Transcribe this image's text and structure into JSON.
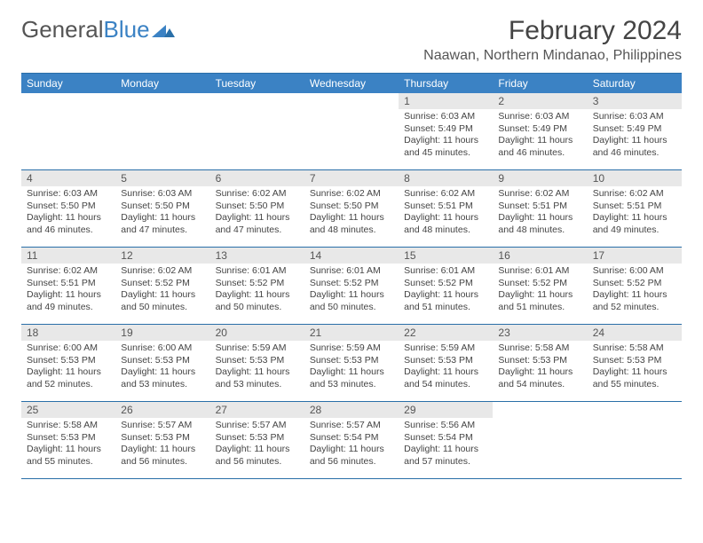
{
  "logo": {
    "text1": "General",
    "text2": "Blue"
  },
  "title": "February 2024",
  "location": "Naawan, Northern Mindanao, Philippines",
  "colors": {
    "header_bg": "#3b82c4",
    "border": "#2a6fa8",
    "daynum_bg": "#e8e8e8",
    "text": "#444444"
  },
  "daysOfWeek": [
    "Sunday",
    "Monday",
    "Tuesday",
    "Wednesday",
    "Thursday",
    "Friday",
    "Saturday"
  ],
  "weeks": [
    [
      {
        "empty": true
      },
      {
        "empty": true
      },
      {
        "empty": true
      },
      {
        "empty": true
      },
      {
        "num": "1",
        "sunrise": "Sunrise: 6:03 AM",
        "sunset": "Sunset: 5:49 PM",
        "daylight": "Daylight: 11 hours and 45 minutes."
      },
      {
        "num": "2",
        "sunrise": "Sunrise: 6:03 AM",
        "sunset": "Sunset: 5:49 PM",
        "daylight": "Daylight: 11 hours and 46 minutes."
      },
      {
        "num": "3",
        "sunrise": "Sunrise: 6:03 AM",
        "sunset": "Sunset: 5:49 PM",
        "daylight": "Daylight: 11 hours and 46 minutes."
      }
    ],
    [
      {
        "num": "4",
        "sunrise": "Sunrise: 6:03 AM",
        "sunset": "Sunset: 5:50 PM",
        "daylight": "Daylight: 11 hours and 46 minutes."
      },
      {
        "num": "5",
        "sunrise": "Sunrise: 6:03 AM",
        "sunset": "Sunset: 5:50 PM",
        "daylight": "Daylight: 11 hours and 47 minutes."
      },
      {
        "num": "6",
        "sunrise": "Sunrise: 6:02 AM",
        "sunset": "Sunset: 5:50 PM",
        "daylight": "Daylight: 11 hours and 47 minutes."
      },
      {
        "num": "7",
        "sunrise": "Sunrise: 6:02 AM",
        "sunset": "Sunset: 5:50 PM",
        "daylight": "Daylight: 11 hours and 48 minutes."
      },
      {
        "num": "8",
        "sunrise": "Sunrise: 6:02 AM",
        "sunset": "Sunset: 5:51 PM",
        "daylight": "Daylight: 11 hours and 48 minutes."
      },
      {
        "num": "9",
        "sunrise": "Sunrise: 6:02 AM",
        "sunset": "Sunset: 5:51 PM",
        "daylight": "Daylight: 11 hours and 48 minutes."
      },
      {
        "num": "10",
        "sunrise": "Sunrise: 6:02 AM",
        "sunset": "Sunset: 5:51 PM",
        "daylight": "Daylight: 11 hours and 49 minutes."
      }
    ],
    [
      {
        "num": "11",
        "sunrise": "Sunrise: 6:02 AM",
        "sunset": "Sunset: 5:51 PM",
        "daylight": "Daylight: 11 hours and 49 minutes."
      },
      {
        "num": "12",
        "sunrise": "Sunrise: 6:02 AM",
        "sunset": "Sunset: 5:52 PM",
        "daylight": "Daylight: 11 hours and 50 minutes."
      },
      {
        "num": "13",
        "sunrise": "Sunrise: 6:01 AM",
        "sunset": "Sunset: 5:52 PM",
        "daylight": "Daylight: 11 hours and 50 minutes."
      },
      {
        "num": "14",
        "sunrise": "Sunrise: 6:01 AM",
        "sunset": "Sunset: 5:52 PM",
        "daylight": "Daylight: 11 hours and 50 minutes."
      },
      {
        "num": "15",
        "sunrise": "Sunrise: 6:01 AM",
        "sunset": "Sunset: 5:52 PM",
        "daylight": "Daylight: 11 hours and 51 minutes."
      },
      {
        "num": "16",
        "sunrise": "Sunrise: 6:01 AM",
        "sunset": "Sunset: 5:52 PM",
        "daylight": "Daylight: 11 hours and 51 minutes."
      },
      {
        "num": "17",
        "sunrise": "Sunrise: 6:00 AM",
        "sunset": "Sunset: 5:52 PM",
        "daylight": "Daylight: 11 hours and 52 minutes."
      }
    ],
    [
      {
        "num": "18",
        "sunrise": "Sunrise: 6:00 AM",
        "sunset": "Sunset: 5:53 PM",
        "daylight": "Daylight: 11 hours and 52 minutes."
      },
      {
        "num": "19",
        "sunrise": "Sunrise: 6:00 AM",
        "sunset": "Sunset: 5:53 PM",
        "daylight": "Daylight: 11 hours and 53 minutes."
      },
      {
        "num": "20",
        "sunrise": "Sunrise: 5:59 AM",
        "sunset": "Sunset: 5:53 PM",
        "daylight": "Daylight: 11 hours and 53 minutes."
      },
      {
        "num": "21",
        "sunrise": "Sunrise: 5:59 AM",
        "sunset": "Sunset: 5:53 PM",
        "daylight": "Daylight: 11 hours and 53 minutes."
      },
      {
        "num": "22",
        "sunrise": "Sunrise: 5:59 AM",
        "sunset": "Sunset: 5:53 PM",
        "daylight": "Daylight: 11 hours and 54 minutes."
      },
      {
        "num": "23",
        "sunrise": "Sunrise: 5:58 AM",
        "sunset": "Sunset: 5:53 PM",
        "daylight": "Daylight: 11 hours and 54 minutes."
      },
      {
        "num": "24",
        "sunrise": "Sunrise: 5:58 AM",
        "sunset": "Sunset: 5:53 PM",
        "daylight": "Daylight: 11 hours and 55 minutes."
      }
    ],
    [
      {
        "num": "25",
        "sunrise": "Sunrise: 5:58 AM",
        "sunset": "Sunset: 5:53 PM",
        "daylight": "Daylight: 11 hours and 55 minutes."
      },
      {
        "num": "26",
        "sunrise": "Sunrise: 5:57 AM",
        "sunset": "Sunset: 5:53 PM",
        "daylight": "Daylight: 11 hours and 56 minutes."
      },
      {
        "num": "27",
        "sunrise": "Sunrise: 5:57 AM",
        "sunset": "Sunset: 5:53 PM",
        "daylight": "Daylight: 11 hours and 56 minutes."
      },
      {
        "num": "28",
        "sunrise": "Sunrise: 5:57 AM",
        "sunset": "Sunset: 5:54 PM",
        "daylight": "Daylight: 11 hours and 56 minutes."
      },
      {
        "num": "29",
        "sunrise": "Sunrise: 5:56 AM",
        "sunset": "Sunset: 5:54 PM",
        "daylight": "Daylight: 11 hours and 57 minutes."
      },
      {
        "empty": true
      },
      {
        "empty": true
      }
    ]
  ]
}
